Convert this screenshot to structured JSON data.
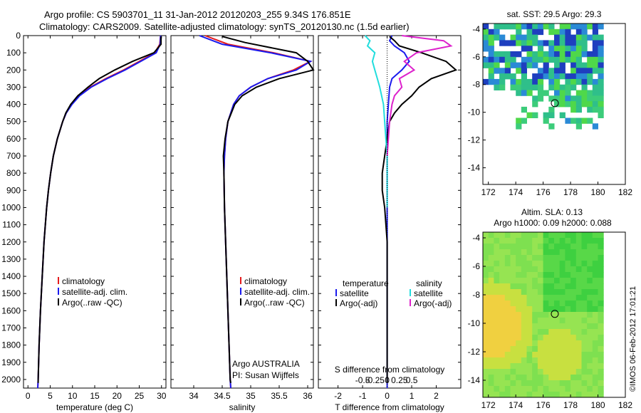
{
  "title": {
    "line1": "Argo profile: CS 5903701_11 31-Jan-2012 20120203_255 9.34S 176.851E",
    "line2": "Climatology: CARS2009. Satellite-adjusted climatology: synTS_20120130.nc (1.5d earlier)"
  },
  "credit": "©IMOS 06-Feb-2012 17:01:21",
  "colors": {
    "climatology": "#e41a1c",
    "satellite": "#1a1aee",
    "argo": "#000000",
    "sat_s": "#22dddd",
    "argo_s": "#dd22cc"
  },
  "chart_data": [
    {
      "type": "line",
      "xlabel": "temperature (deg C)",
      "ylim": [
        2050,
        0
      ],
      "xlim": [
        -1,
        31
      ],
      "yticks": [
        "0",
        "100",
        "200",
        "300",
        "400",
        "500",
        "600",
        "700",
        "800",
        "900",
        "1000",
        "1100",
        "1200",
        "1300",
        "1400",
        "1500",
        "1600",
        "1700",
        "1800",
        "1900",
        "2000"
      ],
      "xticks": [
        "0",
        "5",
        "10",
        "15",
        "20",
        "25",
        "30"
      ],
      "legend": [
        "climatology",
        "satellite-adj. clim.",
        "Argo(..raw -QC)"
      ],
      "series": [
        {
          "name": "climatology",
          "y": [
            0,
            50,
            100,
            150,
            200,
            250,
            300,
            350,
            400,
            450,
            500,
            600,
            700,
            800,
            900,
            1000,
            1200,
            1400,
            1600,
            1800,
            2000,
            2050
          ],
          "x": [
            29.8,
            29.6,
            28.5,
            25,
            21.5,
            17.5,
            14,
            11.5,
            9.8,
            8.6,
            7.8,
            6.6,
            5.7,
            5.1,
            4.6,
            4.2,
            3.6,
            3.2,
            2.8,
            2.5,
            2.3,
            2.2
          ]
        },
        {
          "name": "satellite-adj. clim.",
          "y": [
            0,
            50,
            100,
            150,
            200,
            250,
            300,
            350,
            400,
            450,
            500,
            600,
            700,
            800,
            900,
            1000,
            1200,
            1400,
            1600,
            1800,
            2000,
            2050
          ],
          "x": [
            29.8,
            29.7,
            28.8,
            25.3,
            21.8,
            17.8,
            14.2,
            11.6,
            9.9,
            8.6,
            7.8,
            6.6,
            5.7,
            5.1,
            4.6,
            4.2,
            3.6,
            3.2,
            2.8,
            2.5,
            2.3,
            2.2
          ]
        },
        {
          "name": "Argo(..raw -QC)",
          "y": [
            5,
            50,
            100,
            150,
            200,
            250,
            300,
            350,
            400,
            450,
            500,
            600,
            700,
            800,
            900,
            1000,
            1200,
            1400,
            1600,
            1800,
            2000,
            2020
          ],
          "x": [
            29.9,
            29.9,
            28.3,
            23.5,
            19.5,
            16,
            13.5,
            11.2,
            9.6,
            8.5,
            7.8,
            6.6,
            5.7,
            5.1,
            4.6,
            4.2,
            3.6,
            3.2,
            2.8,
            2.5,
            2.3,
            2.3
          ]
        }
      ]
    },
    {
      "type": "line",
      "xlabel": "salinity",
      "ylim": [
        2050,
        0
      ],
      "xlim": [
        33.6,
        36.1
      ],
      "xticks": [
        "34",
        "34.5",
        "35",
        "35.5",
        "36"
      ],
      "legend": [
        "climatology",
        "satellite-adj. clim.",
        "Argo(..raw -QC)"
      ],
      "annotation": [
        "Argo AUSTRALIA",
        "PI: Susan Wijffels"
      ],
      "series": [
        {
          "name": "climatology",
          "y": [
            0,
            50,
            100,
            150,
            200,
            250,
            300,
            350,
            400,
            500,
            600,
            700,
            800,
            1000,
            1200,
            1400,
            1600,
            1800,
            2000,
            2050
          ],
          "x": [
            34.2,
            34.6,
            35.4,
            36.05,
            35.75,
            35.3,
            35.0,
            34.8,
            34.7,
            34.6,
            34.56,
            34.54,
            34.53,
            34.54,
            34.56,
            34.58,
            34.6,
            34.62,
            34.64,
            34.65
          ]
        },
        {
          "name": "satellite-adj. clim.",
          "y": [
            0,
            50,
            100,
            150,
            200,
            250,
            300,
            350,
            400,
            500,
            600,
            700,
            800,
            1000,
            1200,
            1400,
            1600,
            1800,
            2000,
            2050
          ],
          "x": [
            34.1,
            34.5,
            35.35,
            36.05,
            35.8,
            35.3,
            35.0,
            34.8,
            34.7,
            34.6,
            34.56,
            34.54,
            34.53,
            34.54,
            34.56,
            34.58,
            34.6,
            34.62,
            34.64,
            34.65
          ]
        },
        {
          "name": "Argo(..raw -QC)",
          "y": [
            5,
            40,
            100,
            150,
            200,
            250,
            300,
            350,
            400,
            500,
            600,
            700,
            800,
            1000,
            1200,
            1400,
            1600,
            1800,
            2000,
            2020
          ],
          "x": [
            34.5,
            34.9,
            35.8,
            36.0,
            36.1,
            35.5,
            35.1,
            34.85,
            34.72,
            34.6,
            34.55,
            34.52,
            34.53,
            34.54,
            34.56,
            34.58,
            34.6,
            34.62,
            34.64,
            34.65
          ]
        }
      ]
    },
    {
      "type": "line",
      "xlabel": "T difference from climatology",
      "x2label": "S difference from climatology",
      "ylim": [
        2050,
        0
      ],
      "xlim": [
        -2.8,
        3.0
      ],
      "xticks": [
        "-2",
        "-1",
        "0",
        "1",
        "2"
      ],
      "x2ticks": [
        "-0.5",
        "-0.25",
        "0",
        "0.25",
        "0.5"
      ],
      "legend_t": [
        "temperature",
        "satellite",
        "Argo(-adj)"
      ],
      "legend_s": [
        "salinity",
        "satellite",
        "Argo(-adj)"
      ],
      "series": [
        {
          "name": "satellite",
          "y": [
            0,
            30,
            60,
            100,
            150,
            200,
            250,
            300,
            400,
            500,
            700,
            900,
            1200,
            1600,
            2000,
            2050
          ],
          "x": [
            0.2,
            0.1,
            0.3,
            0.7,
            0.9,
            0.6,
            0.2,
            0.1,
            0.05,
            0.0,
            0.0,
            0.0,
            0.0,
            0.0,
            0.0,
            0.0
          ]
        },
        {
          "name": "Argo(-adj)",
          "y": [
            5,
            30,
            60,
            100,
            150,
            200,
            250,
            300,
            350,
            400,
            450,
            500,
            600,
            700,
            800,
            900,
            1000,
            1200,
            1600,
            2000,
            2020
          ],
          "x": [
            0.1,
            0.3,
            0.5,
            1.4,
            2.4,
            2.8,
            1.8,
            1.3,
            1.0,
            0.6,
            0.3,
            0.1,
            0.0,
            -0.1,
            -0.2,
            -0.2,
            -0.1,
            0.0,
            0.0,
            0.0,
            0.0
          ]
        },
        {
          "name": "satellite S",
          "y": [
            0,
            30,
            60,
            100,
            150,
            200,
            250,
            300,
            400,
            500,
            600,
            700,
            800,
            900,
            1000
          ],
          "x": [
            -0.9,
            -0.7,
            -0.8,
            -0.5,
            -0.6,
            -0.5,
            -0.4,
            -0.3,
            -0.15,
            -0.1,
            -0.05,
            0.0,
            0.0,
            0.0,
            0.0
          ]
        },
        {
          "name": "Argo(-adj) S",
          "y": [
            0,
            30,
            60,
            100,
            150,
            200,
            250,
            300,
            350,
            400,
            500,
            600,
            700
          ],
          "x": [
            0.6,
            2.3,
            2.6,
            1.2,
            0.7,
            1.1,
            0.5,
            0.6,
            0.3,
            0.2,
            0.1,
            0.05,
            0.0
          ]
        }
      ]
    },
    {
      "type": "heatmap",
      "title": "sat. SST: 29.5 Argo: 29.3",
      "xticks": [
        "172",
        "174",
        "176",
        "178",
        "180",
        "182"
      ],
      "yticks": [
        "-4",
        "-6",
        "-8",
        "-10",
        "-12",
        "-14"
      ],
      "xlim": [
        171.6,
        182
      ],
      "ylim": [
        -15.2,
        -3.6
      ],
      "marker": {
        "x": 176.851,
        "y": -9.34
      }
    },
    {
      "type": "heatmap",
      "title": "Altim. SLA: 0.13",
      "subtitle": "Argo h1000: 0.09 h2000: 0.088",
      "xticks": [
        "172",
        "174",
        "176",
        "178",
        "180",
        "182"
      ],
      "yticks": [
        "-4",
        "-6",
        "-8",
        "-10",
        "-12",
        "-14"
      ],
      "xlim": [
        171.6,
        182
      ],
      "ylim": [
        -15.2,
        -3.6
      ],
      "marker": {
        "x": 176.851,
        "y": -9.34
      }
    }
  ]
}
